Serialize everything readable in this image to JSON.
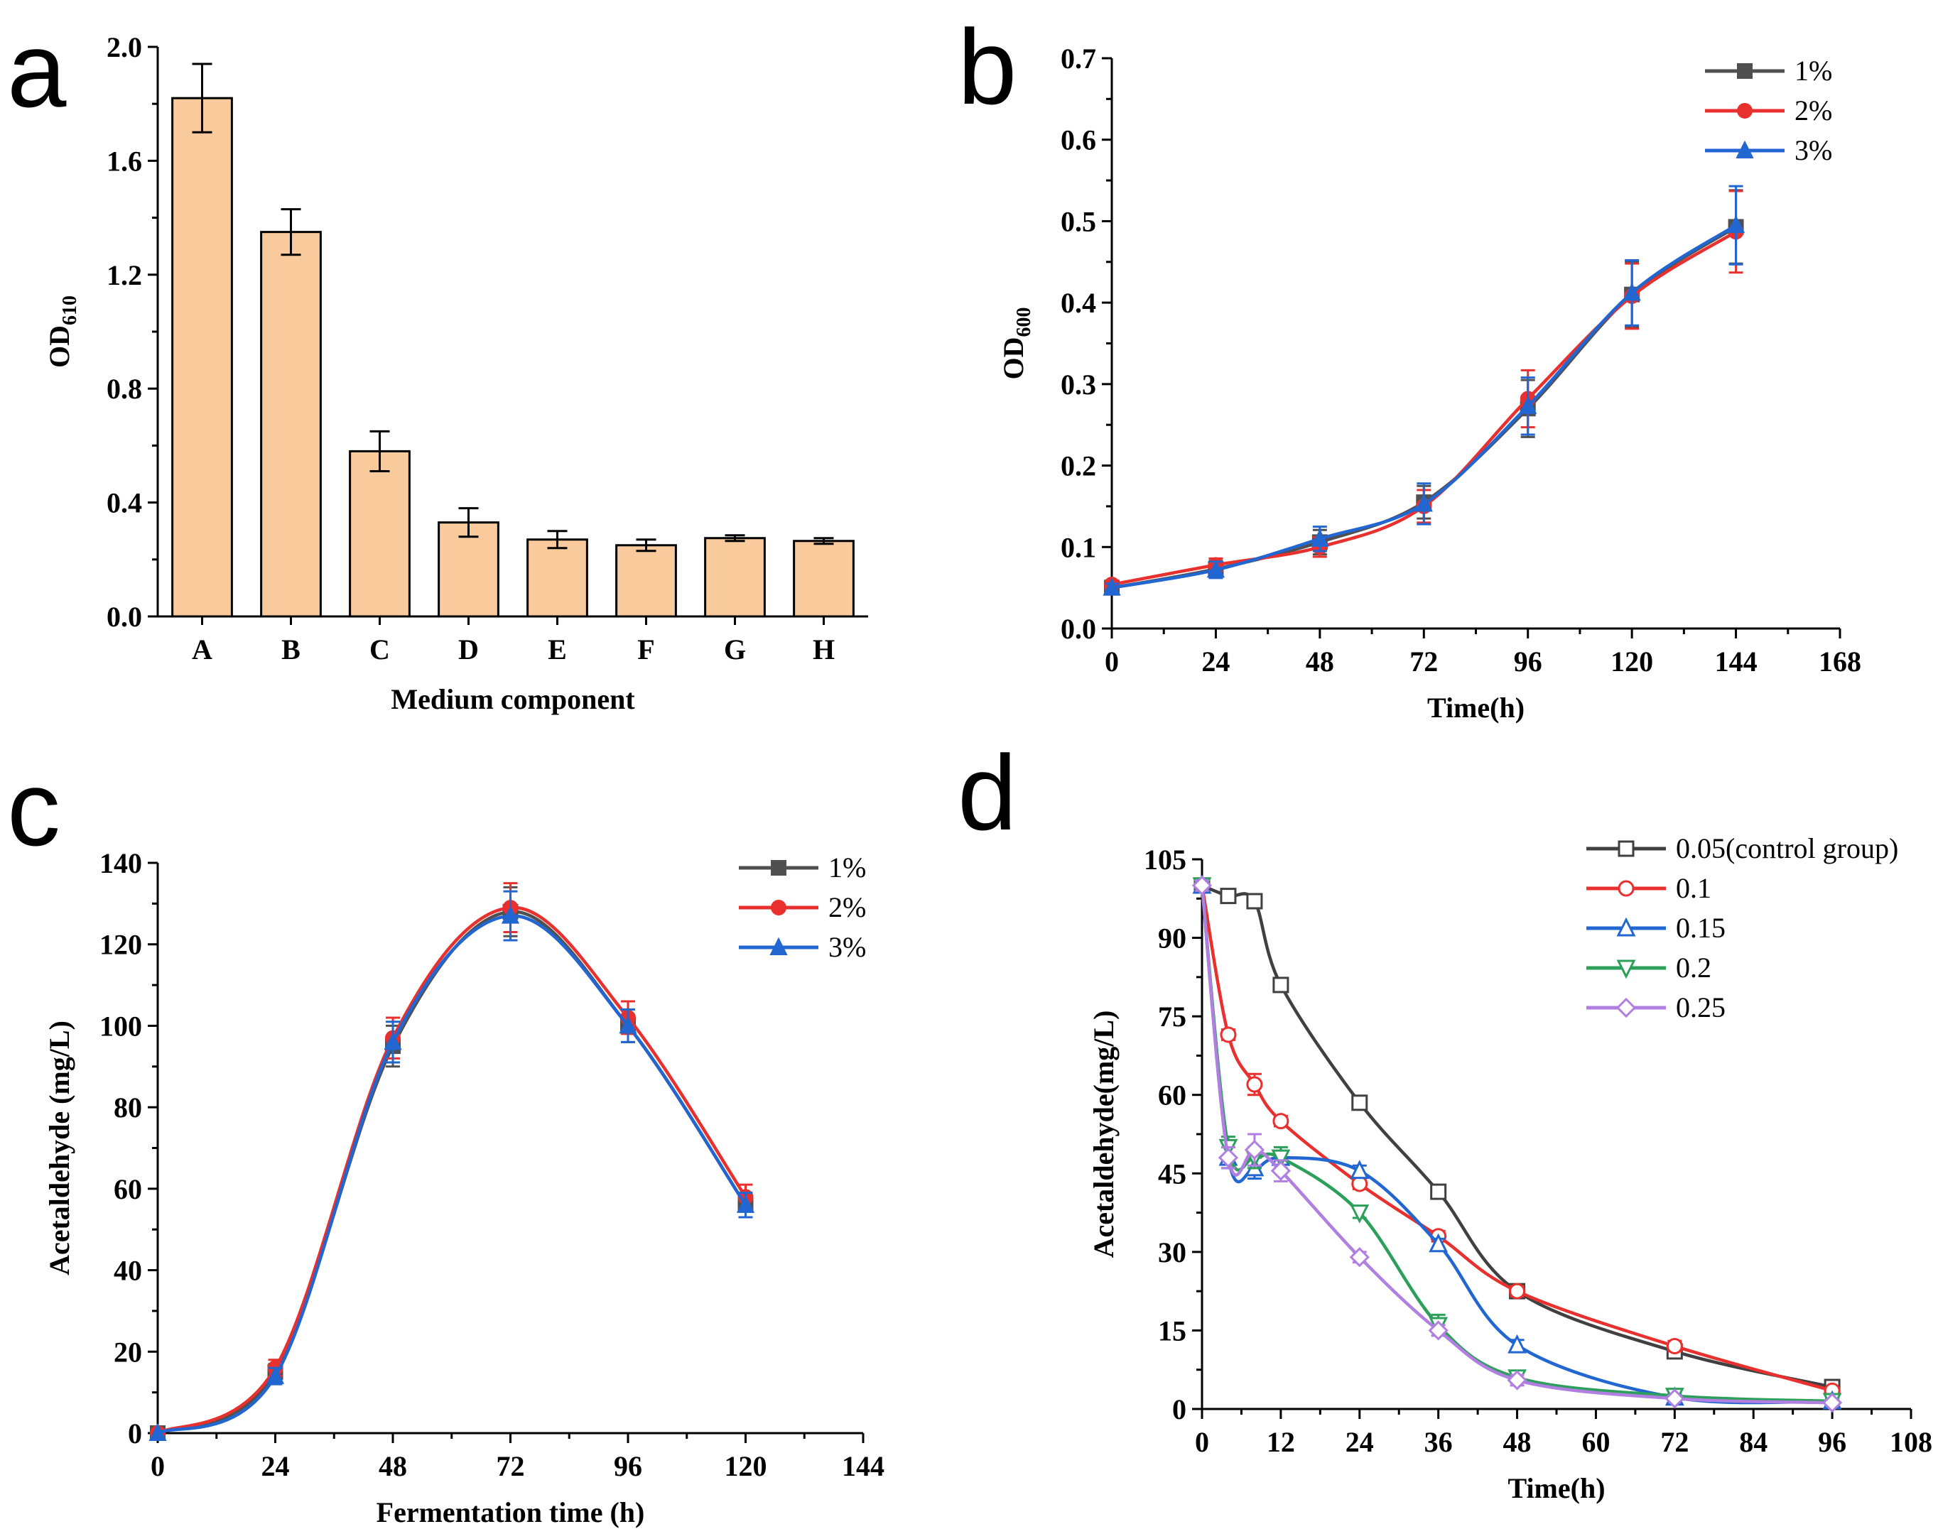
{
  "chart_data": [
    {
      "panel": "a",
      "type": "bar",
      "categories": [
        "A",
        "B",
        "C",
        "D",
        "E",
        "F",
        "G",
        "H"
      ],
      "values": [
        1.82,
        1.35,
        0.58,
        0.33,
        0.27,
        0.25,
        0.275,
        0.265
      ],
      "errors": [
        0.12,
        0.08,
        0.07,
        0.05,
        0.03,
        0.02,
        0.01,
        0.01
      ],
      "xlabel": "Medium component",
      "ylabel": "OD",
      "ylabel_sub": "610",
      "ylim": [
        0,
        2.0
      ],
      "yticks": [
        "0.0",
        "0.4",
        "0.8",
        "1.2",
        "1.6",
        "2.0"
      ],
      "bar_color": "#f9cb9c"
    },
    {
      "panel": "b",
      "type": "line",
      "xlabel": "Time(h)",
      "ylabel": "OD",
      "ylabel_sub": "600",
      "xlim": [
        0,
        168
      ],
      "ylim": [
        0,
        0.7
      ],
      "xticks": [
        "0",
        "24",
        "48",
        "72",
        "96",
        "120",
        "144",
        "168"
      ],
      "yticks": [
        "0.0",
        "0.1",
        "0.2",
        "0.3",
        "0.4",
        "0.5",
        "0.6",
        "0.7"
      ],
      "legend_position": "top-right",
      "series": [
        {
          "name": "1%",
          "color": "#505050",
          "marker": "square",
          "x": [
            0,
            24,
            48,
            72,
            96,
            120,
            144
          ],
          "values": [
            0.05,
            0.073,
            0.106,
            0.155,
            0.27,
            0.41,
            0.493
          ],
          "errors": [
            0.005,
            0.01,
            0.015,
            0.02,
            0.035,
            0.04,
            0.045
          ]
        },
        {
          "name": "2%",
          "color": "#e8312f",
          "marker": "circle",
          "x": [
            0,
            24,
            48,
            72,
            96,
            120,
            144
          ],
          "values": [
            0.054,
            0.078,
            0.1,
            0.15,
            0.282,
            0.408,
            0.487
          ],
          "errors": [
            0.005,
            0.008,
            0.012,
            0.02,
            0.035,
            0.04,
            0.05
          ]
        },
        {
          "name": "3%",
          "color": "#2166d1",
          "marker": "triangle",
          "x": [
            0,
            24,
            48,
            72,
            96,
            120,
            144
          ],
          "values": [
            0.05,
            0.072,
            0.11,
            0.153,
            0.273,
            0.412,
            0.495
          ],
          "errors": [
            0.005,
            0.01,
            0.015,
            0.025,
            0.035,
            0.04,
            0.048
          ]
        }
      ]
    },
    {
      "panel": "c",
      "type": "line",
      "xlabel": "Fermentation time (h)",
      "ylabel": "Acetaldehyde (mg/L)",
      "xlim": [
        0,
        144
      ],
      "ylim": [
        0,
        140
      ],
      "xticks": [
        "0",
        "24",
        "48",
        "72",
        "96",
        "120",
        "144"
      ],
      "yticks": [
        "0",
        "20",
        "40",
        "60",
        "80",
        "100",
        "120",
        "140"
      ],
      "legend_position": "top-right",
      "series": [
        {
          "name": "1%",
          "color": "#505050",
          "marker": "square",
          "x": [
            0,
            24,
            48,
            72,
            96,
            120
          ],
          "values": [
            0,
            15,
            95,
            128,
            100,
            56
          ],
          "errors": [
            0,
            2,
            5,
            6,
            4,
            3
          ]
        },
        {
          "name": "2%",
          "color": "#e8312f",
          "marker": "circle",
          "x": [
            0,
            24,
            48,
            72,
            96,
            120
          ],
          "values": [
            0,
            16,
            97,
            129,
            102,
            58
          ],
          "errors": [
            0,
            2,
            5,
            6,
            4,
            3
          ]
        },
        {
          "name": "3%",
          "color": "#2166d1",
          "marker": "triangle",
          "x": [
            0,
            24,
            48,
            72,
            96,
            120
          ],
          "values": [
            0,
            14,
            96,
            127,
            100,
            56
          ],
          "errors": [
            0,
            2,
            5,
            6,
            4,
            3
          ]
        }
      ]
    },
    {
      "panel": "d",
      "type": "line",
      "xlabel": "Time(h)",
      "ylabel": "Acetaldehyde(mg/L)",
      "xlim": [
        0,
        108
      ],
      "ylim": [
        0,
        105
      ],
      "xticks": [
        "0",
        "12",
        "24",
        "36",
        "48",
        "60",
        "72",
        "84",
        "96",
        "108"
      ],
      "yticks": [
        "0",
        "15",
        "30",
        "45",
        "60",
        "75",
        "90",
        "105"
      ],
      "legend_position": "top-right",
      "series": [
        {
          "name": "0.05(control group)",
          "color": "#404040",
          "marker": "square-open",
          "x": [
            0,
            4,
            8,
            12,
            24,
            36,
            48,
            72,
            96
          ],
          "values": [
            100,
            98,
            97,
            81,
            58.5,
            41.5,
            22.5,
            11,
            4.2
          ],
          "errors": [
            1,
            1,
            1,
            1,
            1,
            1,
            1,
            1,
            0.5
          ]
        },
        {
          "name": "0.1",
          "color": "#e8312f",
          "marker": "circle-open",
          "x": [
            0,
            4,
            8,
            12,
            24,
            36,
            48,
            72,
            96
          ],
          "values": [
            100,
            71.5,
            62,
            55,
            43,
            33,
            22.5,
            12,
            3.5
          ],
          "errors": [
            1,
            1,
            2,
            1,
            1,
            1,
            1,
            1,
            0.5
          ]
        },
        {
          "name": "0.15",
          "color": "#2166d1",
          "marker": "triangle-open",
          "x": [
            0,
            4,
            8,
            12,
            24,
            36,
            48,
            72,
            96
          ],
          "values": [
            100,
            48,
            46,
            48,
            45.5,
            31.5,
            12.2,
            2.2,
            1.5
          ],
          "errors": [
            1,
            2,
            2,
            1,
            1,
            1,
            1,
            0.5,
            0.5
          ]
        },
        {
          "name": "0.2",
          "color": "#2ca05a",
          "marker": "triangle-down-open",
          "x": [
            0,
            4,
            8,
            12,
            24,
            36,
            48,
            72,
            96
          ],
          "values": [
            100,
            50,
            48,
            48,
            37.5,
            16,
            6,
            2.5,
            1.5
          ],
          "errors": [
            1,
            2,
            2,
            2,
            1,
            2,
            1,
            0.5,
            0.5
          ]
        },
        {
          "name": "0.25",
          "color": "#b07fe0",
          "marker": "diamond-open",
          "x": [
            0,
            4,
            8,
            12,
            24,
            36,
            48,
            72,
            96
          ],
          "values": [
            100,
            48,
            49.5,
            45.5,
            29,
            15,
            5.5,
            2,
            1.2
          ],
          "errors": [
            1,
            2,
            3,
            2,
            1,
            1,
            1,
            0.5,
            0.5
          ]
        }
      ]
    }
  ]
}
